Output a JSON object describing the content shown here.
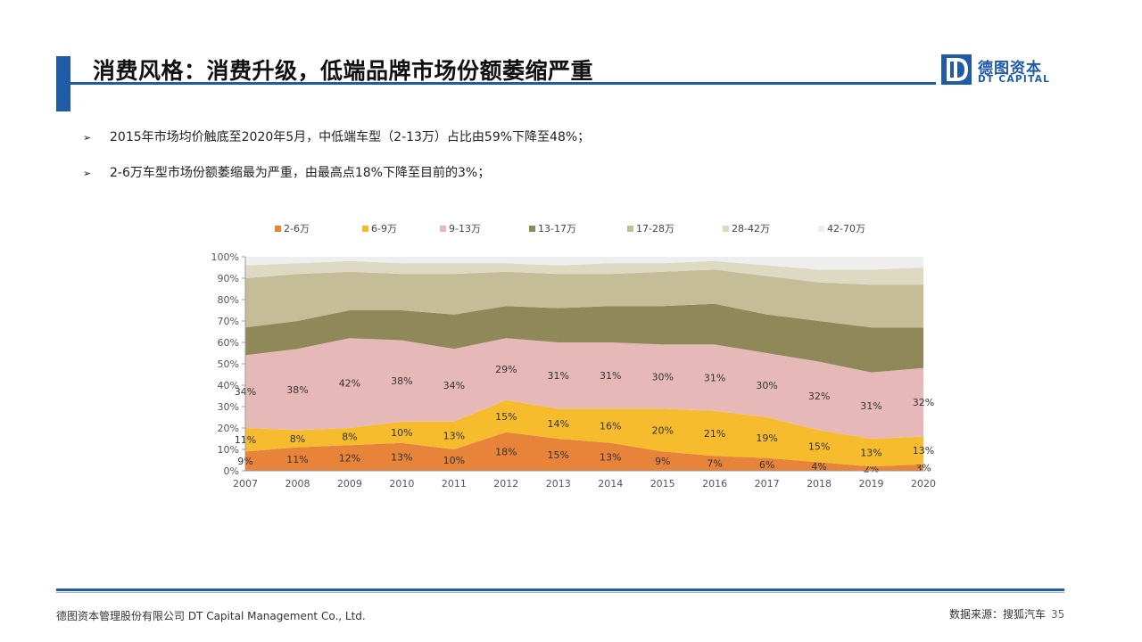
{
  "header": {
    "title": "消费风格：消费升级，低端品牌市场份额萎缩严重"
  },
  "logo": {
    "cn": "德图资本",
    "en": "DT CAPITAL",
    "mark": "D"
  },
  "bullets": [
    "2015年市场均价触底至2020年5月，中低端车型（2-13万）占比由59%下降至48%；",
    "2-6万车型市场份额萎缩最为严重，由最高点18%下降至目前的3%；"
  ],
  "bullet_icon": "arrow-bullet-icon",
  "chart_data": {
    "type": "area",
    "stacked": true,
    "x": [
      "2007",
      "2008",
      "2009",
      "2010",
      "2011",
      "2012",
      "2013",
      "2014",
      "2015",
      "2016",
      "2017",
      "2018",
      "2019",
      "2020"
    ],
    "y_ticks": [
      "0%",
      "10%",
      "20%",
      "30%",
      "40%",
      "50%",
      "60%",
      "70%",
      "80%",
      "90%",
      "100%"
    ],
    "ylim": [
      0,
      100
    ],
    "legend_position": "top",
    "grid": false,
    "series": [
      {
        "name": "2-6万",
        "color": "#e8833a",
        "values": [
          9,
          11,
          12,
          13,
          10,
          18,
          15,
          13,
          9,
          7,
          6,
          4,
          2,
          3
        ],
        "labels": [
          "9%",
          "11%",
          "12%",
          "13%",
          "10%",
          "18%",
          "15%",
          "13%",
          "9%",
          "7%",
          "6%",
          "4%",
          "2%",
          "3%"
        ]
      },
      {
        "name": "6-9万",
        "color": "#f6bc2e",
        "values": [
          11,
          8,
          8,
          10,
          13,
          15,
          14,
          16,
          20,
          21,
          19,
          15,
          13,
          13
        ],
        "labels": [
          "11%",
          "8%",
          "8%",
          "10%",
          "13%",
          "15%",
          "14%",
          "16%",
          "20%",
          "21%",
          "19%",
          "15%",
          "13%",
          "13%"
        ]
      },
      {
        "name": "9-13万",
        "color": "#e6b9b8",
        "values": [
          34,
          38,
          42,
          38,
          34,
          29,
          31,
          31,
          30,
          31,
          30,
          32,
          31,
          32
        ],
        "labels": [
          "34%",
          "38%",
          "42%",
          "38%",
          "34%",
          "29%",
          "31%",
          "31%",
          "30%",
          "31%",
          "30%",
          "32%",
          "31%",
          "32%"
        ]
      },
      {
        "name": "13-17万",
        "color": "#8f8859",
        "values": [
          13,
          13,
          13,
          14,
          16,
          15,
          16,
          17,
          18,
          19,
          18,
          19,
          21,
          19
        ]
      },
      {
        "name": "17-28万",
        "color": "#c4bd97",
        "values": [
          23,
          22,
          18,
          17,
          19,
          16,
          16,
          15,
          16,
          16,
          18,
          18,
          20,
          20
        ]
      },
      {
        "name": "28-42万",
        "color": "#ddd9c3",
        "values": [
          6,
          5,
          5,
          5,
          5,
          4,
          4,
          5,
          4,
          4,
          5,
          6,
          7,
          8
        ]
      },
      {
        "name": "42-70万",
        "color": "#eeeeee",
        "values": [
          4,
          3,
          2,
          3,
          3,
          3,
          4,
          3,
          3,
          2,
          4,
          6,
          6,
          5
        ]
      }
    ]
  },
  "footer": {
    "company": "德图资本管理股份有限公司  DT Capital  Management  Co., Ltd.",
    "source": "数据来源：搜狐汽车",
    "page": "35"
  },
  "colors": {
    "brand": "#1f5ba8"
  }
}
